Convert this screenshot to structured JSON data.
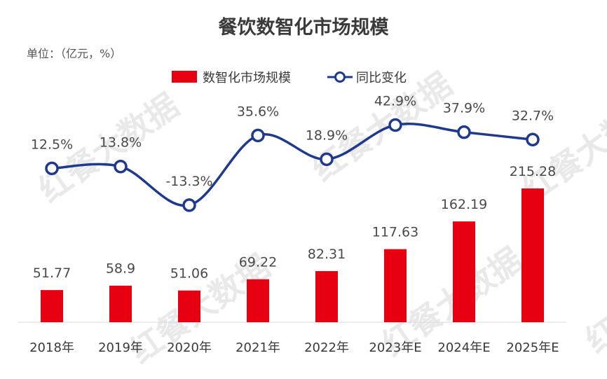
{
  "chart_data": {
    "type": "bar+line",
    "title": "餐饮数智化市场规模",
    "unit_note": "单位：（亿元，%）",
    "categories": [
      "2018年",
      "2019年",
      "2020年",
      "2021年",
      "2022年",
      "2023年E",
      "2024年E",
      "2025年E"
    ],
    "series": [
      {
        "name": "数智化市场规模",
        "type": "bar",
        "color": "#e60012",
        "values": [
          51.77,
          58.9,
          51.06,
          69.22,
          82.31,
          117.63,
          162.19,
          215.28
        ],
        "labels": [
          "51.77",
          "58.9",
          "51.06",
          "69.22",
          "82.31",
          "117.63",
          "162.19",
          "215.28"
        ]
      },
      {
        "name": "同比变化",
        "type": "line",
        "color": "#1f3a8c",
        "values": [
          12.5,
          13.8,
          -13.3,
          35.6,
          18.9,
          42.9,
          37.9,
          32.7
        ],
        "labels": [
          "12.5%",
          "13.8%",
          "-13.3%",
          "35.6%",
          "18.9%",
          "42.9%",
          "37.9%",
          "32.7%"
        ]
      }
    ],
    "legend_position": "top-center",
    "grid": false
  },
  "watermark": "红餐大数据"
}
